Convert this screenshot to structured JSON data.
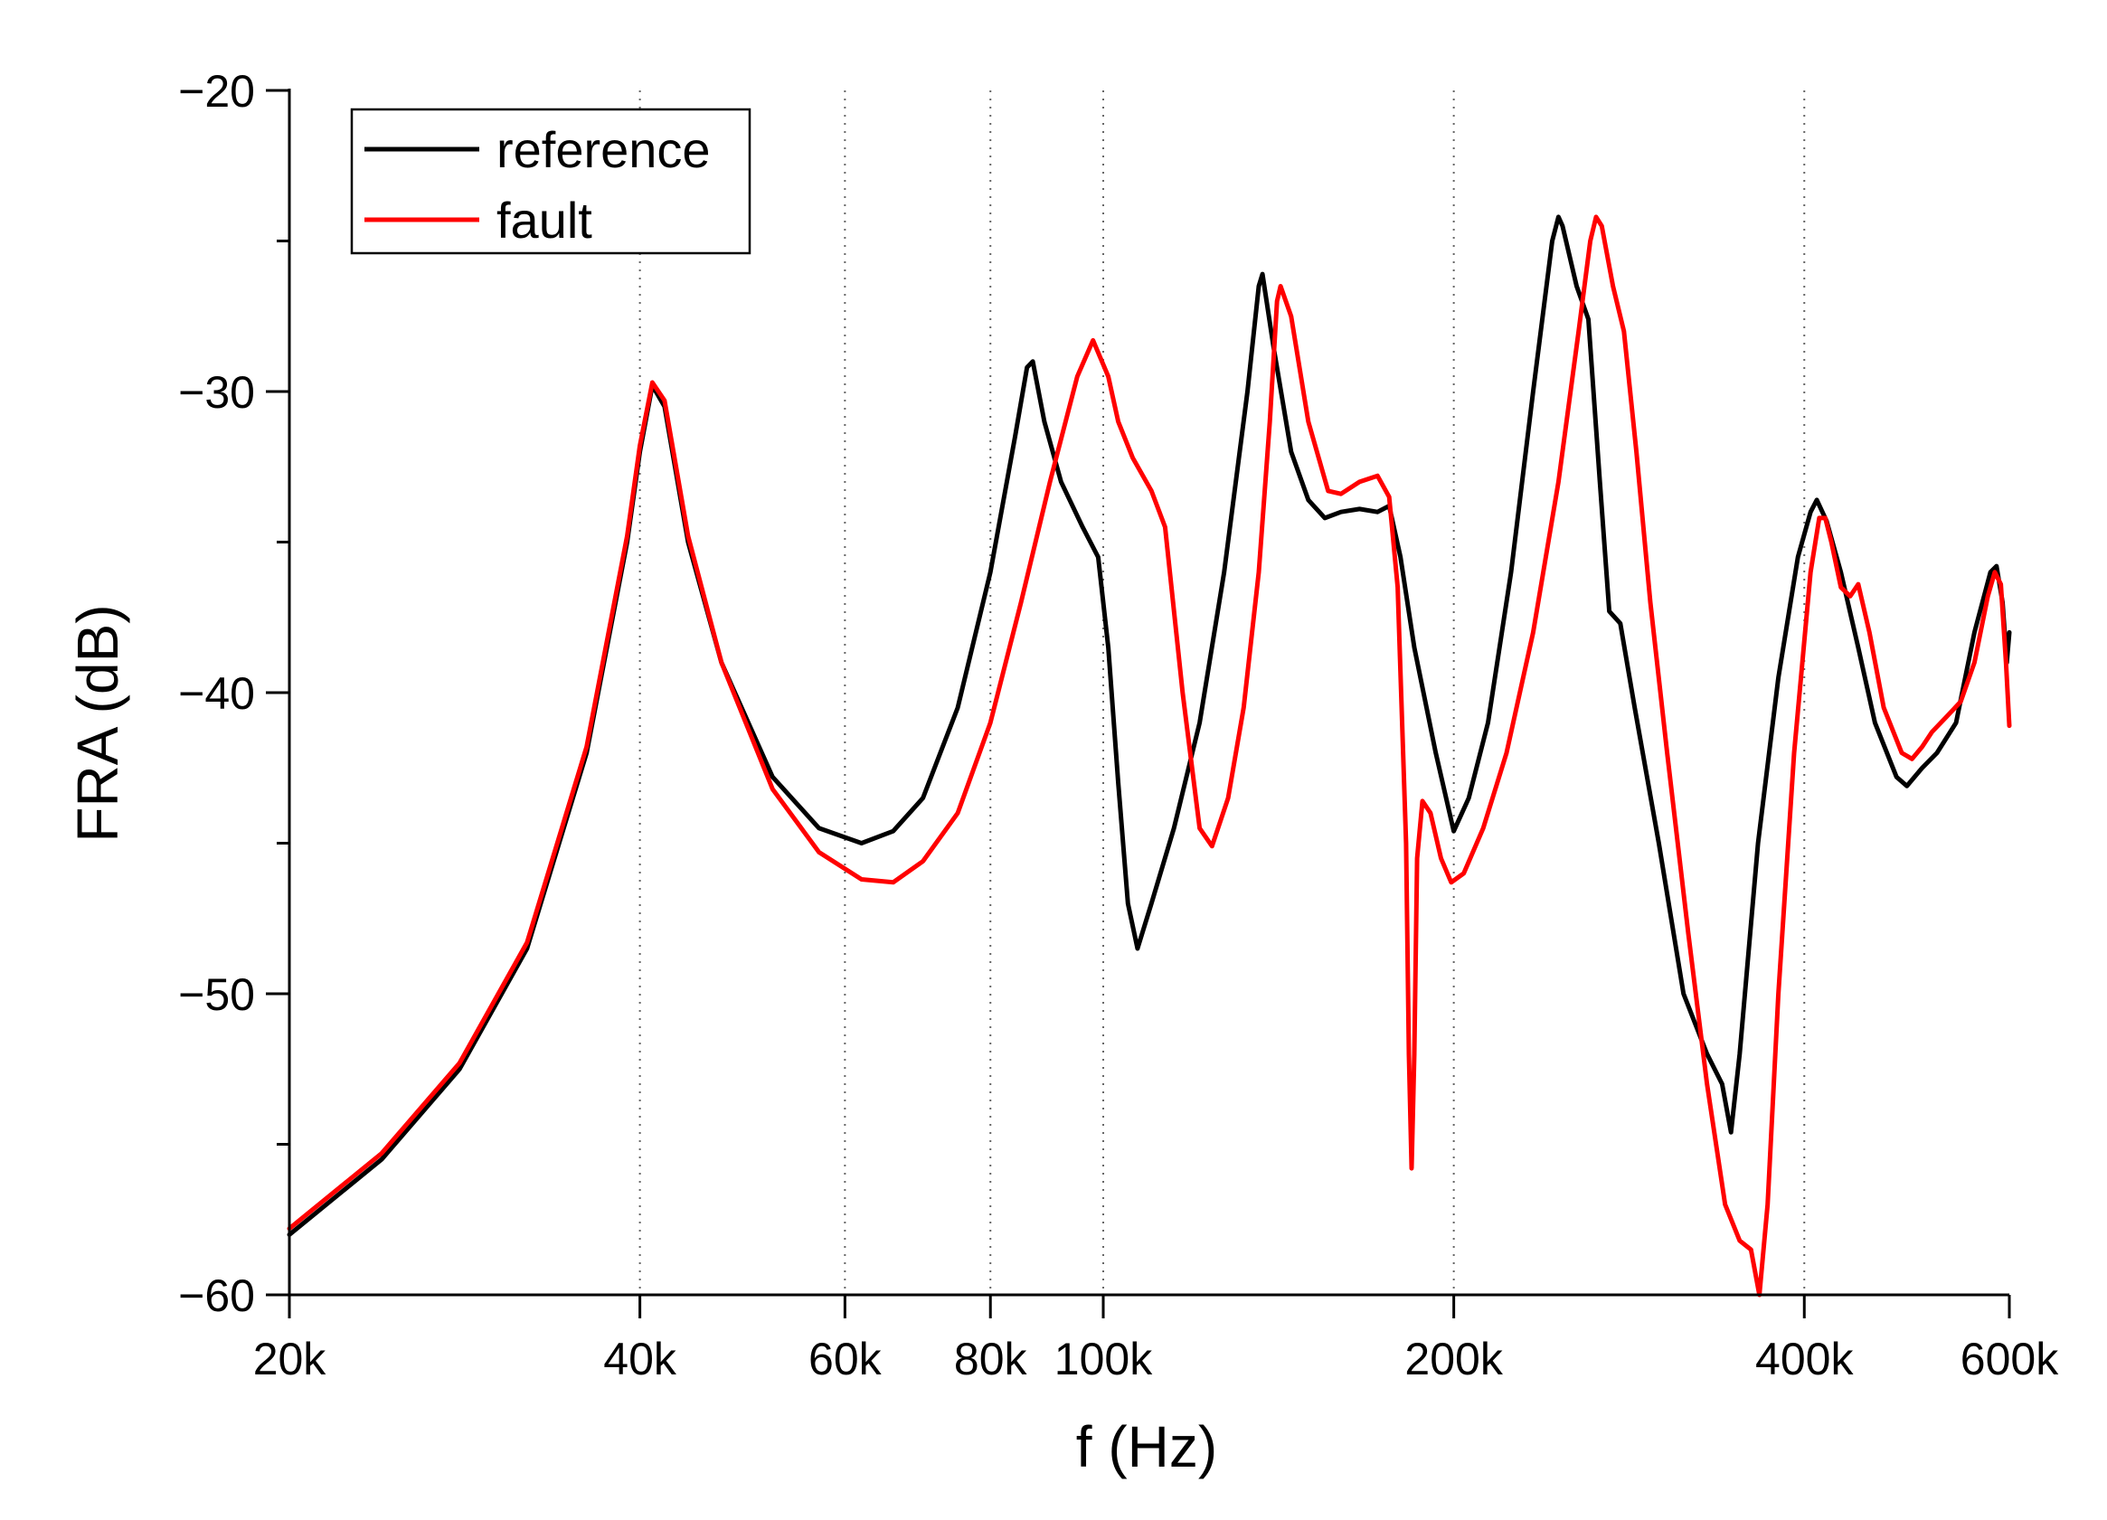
{
  "chart_data": {
    "type": "line",
    "xlabel": "f (Hz)",
    "ylabel": "FRA (dB)",
    "xscale": "log",
    "xlim": [
      20000,
      600000
    ],
    "ylim": [
      -60,
      -20
    ],
    "grid": "vertical-dotted",
    "legend_position": "top-left",
    "xticks": [
      {
        "value": 20000,
        "label": "20k"
      },
      {
        "value": 40000,
        "label": "40k"
      },
      {
        "value": 60000,
        "label": "60k"
      },
      {
        "value": 80000,
        "label": "80k"
      },
      {
        "value": 100000,
        "label": "100k"
      },
      {
        "value": 200000,
        "label": "200k"
      },
      {
        "value": 400000,
        "label": "400k"
      },
      {
        "value": 600000,
        "label": "600k"
      }
    ],
    "xgrid": [
      40000,
      60000,
      80000,
      100000,
      200000,
      400000
    ],
    "yticks": [
      {
        "value": -20,
        "label": "−20"
      },
      {
        "value": -30,
        "label": "−30"
      },
      {
        "value": -40,
        "label": "−40"
      },
      {
        "value": -50,
        "label": "−50"
      },
      {
        "value": -60,
        "label": "−60"
      }
    ],
    "series": [
      {
        "name": "reference",
        "color": "#000000",
        "points": [
          [
            20000,
            -58.0
          ],
          [
            24000,
            -55.5
          ],
          [
            28000,
            -52.5
          ],
          [
            32000,
            -48.5
          ],
          [
            36000,
            -42.0
          ],
          [
            39000,
            -35.0
          ],
          [
            40000,
            -32.0
          ],
          [
            41000,
            -29.8
          ],
          [
            42000,
            -30.5
          ],
          [
            44000,
            -35.0
          ],
          [
            47000,
            -39.0
          ],
          [
            52000,
            -42.8
          ],
          [
            57000,
            -44.5
          ],
          [
            62000,
            -45.0
          ],
          [
            66000,
            -44.6
          ],
          [
            70000,
            -43.5
          ],
          [
            75000,
            -40.5
          ],
          [
            80000,
            -36.0
          ],
          [
            84000,
            -31.5
          ],
          [
            86000,
            -29.2
          ],
          [
            87000,
            -29.0
          ],
          [
            89000,
            -31.0
          ],
          [
            92000,
            -33.0
          ],
          [
            96000,
            -34.5
          ],
          [
            99000,
            -35.5
          ],
          [
            101000,
            -38.5
          ],
          [
            103000,
            -43.0
          ],
          [
            105000,
            -47.0
          ],
          [
            107000,
            -48.5
          ],
          [
            110000,
            -47.0
          ],
          [
            115000,
            -44.5
          ],
          [
            121000,
            -41.0
          ],
          [
            127000,
            -36.0
          ],
          [
            133000,
            -30.0
          ],
          [
            136000,
            -26.5
          ],
          [
            137000,
            -26.1
          ],
          [
            140000,
            -28.5
          ],
          [
            145000,
            -32.0
          ],
          [
            150000,
            -33.6
          ],
          [
            155000,
            -34.2
          ],
          [
            160000,
            -34.0
          ],
          [
            166000,
            -33.9
          ],
          [
            172000,
            -34.0
          ],
          [
            176000,
            -33.8
          ],
          [
            180000,
            -35.5
          ],
          [
            185000,
            -38.5
          ],
          [
            193000,
            -42.0
          ],
          [
            200000,
            -44.6
          ],
          [
            206000,
            -43.5
          ],
          [
            214000,
            -41.0
          ],
          [
            224000,
            -36.0
          ],
          [
            234000,
            -30.0
          ],
          [
            243000,
            -25.0
          ],
          [
            246000,
            -24.2
          ],
          [
            248000,
            -24.5
          ],
          [
            255000,
            -26.5
          ],
          [
            261000,
            -27.6
          ],
          [
            267000,
            -33.0
          ],
          [
            272000,
            -37.3
          ],
          [
            278000,
            -37.7
          ],
          [
            286000,
            -40.5
          ],
          [
            300000,
            -45.0
          ],
          [
            315000,
            -50.0
          ],
          [
            330000,
            -52.0
          ],
          [
            340000,
            -53.0
          ],
          [
            346000,
            -54.6
          ],
          [
            352000,
            -52.0
          ],
          [
            365000,
            -45.0
          ],
          [
            380000,
            -39.5
          ],
          [
            395000,
            -35.5
          ],
          [
            405000,
            -34.0
          ],
          [
            410000,
            -33.6
          ],
          [
            418000,
            -34.3
          ],
          [
            430000,
            -36.0
          ],
          [
            445000,
            -38.5
          ],
          [
            460000,
            -41.0
          ],
          [
            480000,
            -42.8
          ],
          [
            490000,
            -43.1
          ],
          [
            505000,
            -42.5
          ],
          [
            520000,
            -42.0
          ],
          [
            540000,
            -41.0
          ],
          [
            560000,
            -38.0
          ],
          [
            578000,
            -36.0
          ],
          [
            585000,
            -35.8
          ],
          [
            592000,
            -37.0
          ],
          [
            597000,
            -39.0
          ],
          [
            600000,
            -38.0
          ]
        ]
      },
      {
        "name": "fault",
        "color": "#ff0000",
        "points": [
          [
            20000,
            -57.8
          ],
          [
            24000,
            -55.3
          ],
          [
            28000,
            -52.3
          ],
          [
            32000,
            -48.3
          ],
          [
            36000,
            -41.8
          ],
          [
            39000,
            -34.8
          ],
          [
            40000,
            -31.8
          ],
          [
            41000,
            -29.7
          ],
          [
            42000,
            -30.3
          ],
          [
            44000,
            -34.8
          ],
          [
            47000,
            -39.0
          ],
          [
            52000,
            -43.2
          ],
          [
            57000,
            -45.3
          ],
          [
            62000,
            -46.2
          ],
          [
            66000,
            -46.3
          ],
          [
            70000,
            -45.6
          ],
          [
            75000,
            -44.0
          ],
          [
            80000,
            -41.0
          ],
          [
            85000,
            -37.0
          ],
          [
            90000,
            -33.0
          ],
          [
            95000,
            -29.5
          ],
          [
            98000,
            -28.3
          ],
          [
            101000,
            -29.5
          ],
          [
            103000,
            -31.0
          ],
          [
            106000,
            -32.2
          ],
          [
            110000,
            -33.3
          ],
          [
            113000,
            -34.5
          ],
          [
            117000,
            -40.0
          ],
          [
            121000,
            -44.5
          ],
          [
            124000,
            -45.1
          ],
          [
            128000,
            -43.5
          ],
          [
            132000,
            -40.5
          ],
          [
            136000,
            -36.0
          ],
          [
            139000,
            -31.0
          ],
          [
            141000,
            -27.0
          ],
          [
            142000,
            -26.5
          ],
          [
            145000,
            -27.5
          ],
          [
            150000,
            -31.0
          ],
          [
            156000,
            -33.3
          ],
          [
            160000,
            -33.4
          ],
          [
            166000,
            -33.0
          ],
          [
            172000,
            -32.8
          ],
          [
            176000,
            -33.5
          ],
          [
            179000,
            -36.5
          ],
          [
            182000,
            -45.0
          ],
          [
            183000,
            -52.0
          ],
          [
            184000,
            -55.8
          ],
          [
            185000,
            -52.0
          ],
          [
            186000,
            -45.5
          ],
          [
            188000,
            -43.6
          ],
          [
            191000,
            -44.0
          ],
          [
            195000,
            -45.5
          ],
          [
            199000,
            -46.3
          ],
          [
            204000,
            -46.0
          ],
          [
            212000,
            -44.5
          ],
          [
            222000,
            -42.0
          ],
          [
            234000,
            -38.0
          ],
          [
            246000,
            -33.0
          ],
          [
            256000,
            -28.0
          ],
          [
            262000,
            -25.0
          ],
          [
            265000,
            -24.2
          ],
          [
            268000,
            -24.5
          ],
          [
            274000,
            -26.5
          ],
          [
            280000,
            -28.0
          ],
          [
            287000,
            -32.0
          ],
          [
            295000,
            -37.0
          ],
          [
            305000,
            -42.0
          ],
          [
            318000,
            -48.0
          ],
          [
            330000,
            -53.0
          ],
          [
            342000,
            -57.0
          ],
          [
            352000,
            -58.2
          ],
          [
            360000,
            -58.5
          ],
          [
            366000,
            -60.0
          ],
          [
            372000,
            -57.0
          ],
          [
            380000,
            -50.0
          ],
          [
            392000,
            -42.0
          ],
          [
            405000,
            -36.0
          ],
          [
            412000,
            -34.2
          ],
          [
            417000,
            -34.2
          ],
          [
            422000,
            -35.0
          ],
          [
            430000,
            -36.5
          ],
          [
            438000,
            -36.8
          ],
          [
            445000,
            -36.4
          ],
          [
            455000,
            -38.0
          ],
          [
            468000,
            -40.5
          ],
          [
            485000,
            -42.0
          ],
          [
            495000,
            -42.2
          ],
          [
            505000,
            -41.8
          ],
          [
            515000,
            -41.3
          ],
          [
            530000,
            -40.8
          ],
          [
            545000,
            -40.3
          ],
          [
            560000,
            -39.0
          ],
          [
            575000,
            -36.8
          ],
          [
            583000,
            -36.0
          ],
          [
            590000,
            -36.4
          ],
          [
            596000,
            -39.0
          ],
          [
            600000,
            -41.1
          ]
        ]
      }
    ]
  }
}
